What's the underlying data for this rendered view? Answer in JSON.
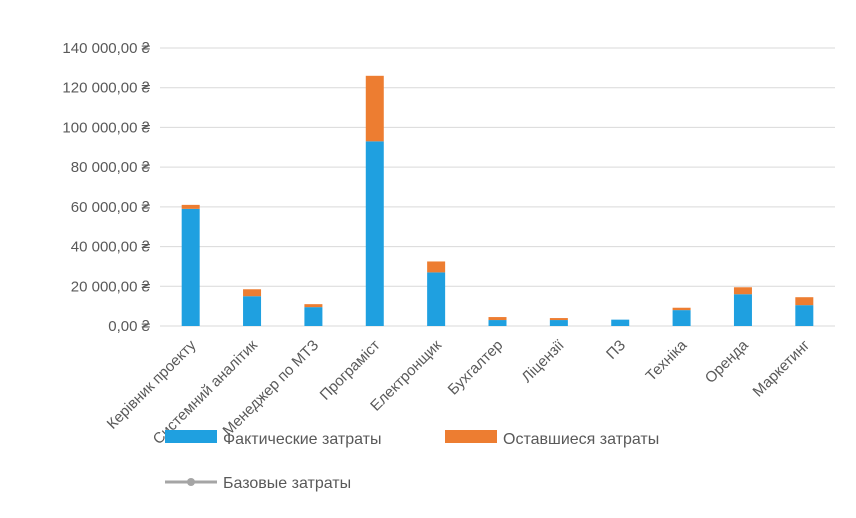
{
  "chart_data": {
    "type": "bar",
    "stacked": true,
    "categories": [
      "Керівник проекту",
      "Системний аналітик",
      "Менеджер по МТЗ",
      "Програміст",
      "Електронщик",
      "Бухгалтер",
      "Ліцензії",
      "ПЗ",
      "Техніка",
      "Оренда",
      "Маркетинг"
    ],
    "series": [
      {
        "name": "Фактические затраты",
        "color": "#1fa0e0",
        "values": [
          59000,
          15000,
          9500,
          93000,
          27000,
          3000,
          3000,
          3200,
          8000,
          16000,
          10500
        ]
      },
      {
        "name": "Оставшиеся затраты",
        "color": "#ed7d31",
        "values": [
          2000,
          3500,
          1500,
          33000,
          5500,
          1500,
          1000,
          0,
          1200,
          3500,
          4000
        ]
      },
      {
        "name": "Базовые затраты",
        "color": "#a5a5a5",
        "type": "line",
        "values": [
          null,
          null,
          null,
          null,
          null,
          null,
          null,
          null,
          null,
          null,
          null
        ]
      }
    ],
    "ylim": [
      0,
      140000
    ],
    "y_ticks": [
      0,
      20000,
      40000,
      60000,
      80000,
      100000,
      120000,
      140000
    ],
    "y_tick_labels": [
      "0,00 ₴",
      "20 000,00 ₴",
      "40 000,00 ₴",
      "60 000,00 ₴",
      "80 000,00 ₴",
      "100 000,00 ₴",
      "120 000,00 ₴",
      "140 000,00 ₴"
    ],
    "grid": true,
    "legend_position": "bottom"
  }
}
